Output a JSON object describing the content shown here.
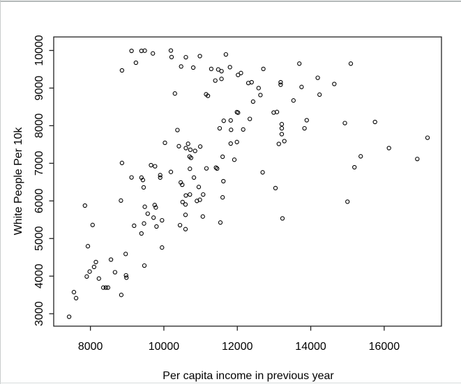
{
  "chart_data": {
    "type": "scatter",
    "title": "",
    "xlabel": "Per capita income in previous year",
    "ylabel": "White People Per 10k",
    "xlim": [
      7000,
      17560
    ],
    "ylim": [
      2670,
      10360
    ],
    "x_ticks": [
      8000,
      10000,
      12000,
      14000,
      16000
    ],
    "y_ticks": [
      3000,
      4000,
      5000,
      6000,
      7000,
      8000,
      9000,
      10000
    ],
    "grid": false,
    "legend": "none",
    "marker": "open-circle",
    "marker_color": "#000000",
    "points": [
      [
        9120,
        9990
      ],
      [
        9390,
        9990
      ],
      [
        9480,
        9995
      ],
      [
        9700,
        9920
      ],
      [
        9240,
        9675
      ],
      [
        8860,
        9470
      ],
      [
        10190,
        9999
      ],
      [
        10210,
        9825
      ],
      [
        10600,
        9820
      ],
      [
        10980,
        9850
      ],
      [
        10470,
        9575
      ],
      [
        10800,
        9545
      ],
      [
        10300,
        8855
      ],
      [
        10370,
        7885
      ],
      [
        10030,
        7545
      ],
      [
        9650,
        6950
      ],
      [
        9760,
        6920
      ],
      [
        10190,
        6770
      ],
      [
        8860,
        7010
      ],
      [
        9120,
        6625
      ],
      [
        9390,
        6620
      ],
      [
        9430,
        6555
      ],
      [
        9900,
        6685
      ],
      [
        9900,
        6620
      ],
      [
        10460,
        6490
      ],
      [
        11690,
        9895
      ],
      [
        11290,
        9510
      ],
      [
        11480,
        9495
      ],
      [
        11570,
        9450
      ],
      [
        11800,
        9555
      ],
      [
        12020,
        9350
      ],
      [
        12100,
        9400
      ],
      [
        11400,
        9200
      ],
      [
        11570,
        9245
      ],
      [
        12710,
        9510
      ],
      [
        12300,
        9135
      ],
      [
        12390,
        9155
      ],
      [
        12580,
        9000
      ],
      [
        12630,
        8815
      ],
      [
        12430,
        8640
      ],
      [
        13180,
        9155
      ],
      [
        13180,
        9090
      ],
      [
        13690,
        9650
      ],
      [
        13750,
        9030
      ],
      [
        13530,
        8670
      ],
      [
        11150,
        8835
      ],
      [
        11200,
        8795
      ],
      [
        11990,
        8360
      ],
      [
        12020,
        8345
      ],
      [
        12990,
        8350
      ],
      [
        13080,
        8365
      ],
      [
        12340,
        8180
      ],
      [
        11630,
        8130
      ],
      [
        11820,
        8140
      ],
      [
        13890,
        8145
      ],
      [
        11520,
        7930
      ],
      [
        13210,
        8040
      ],
      [
        13210,
        7930
      ],
      [
        13830,
        7930
      ],
      [
        11830,
        7890
      ],
      [
        12160,
        7900
      ],
      [
        13210,
        7775
      ],
      [
        11820,
        7525
      ],
      [
        11990,
        7565
      ],
      [
        13280,
        7590
      ],
      [
        13130,
        7515
      ],
      [
        10410,
        7455
      ],
      [
        10660,
        7520
      ],
      [
        10600,
        7405
      ],
      [
        10720,
        7360
      ],
      [
        10850,
        7330
      ],
      [
        10990,
        7445
      ],
      [
        10700,
        7180
      ],
      [
        10740,
        7145
      ],
      [
        11600,
        7175
      ],
      [
        11920,
        7095
      ],
      [
        10710,
        6855
      ],
      [
        11160,
        6865
      ],
      [
        11420,
        6885
      ],
      [
        11450,
        6860
      ],
      [
        12690,
        6760
      ],
      [
        10820,
        6620
      ],
      [
        11620,
        6525
      ],
      [
        15090,
        9650
      ],
      [
        14190,
        9275
      ],
      [
        14640,
        9110
      ],
      [
        14240,
        8825
      ],
      [
        14930,
        8070
      ],
      [
        15750,
        8100
      ],
      [
        17180,
        7680
      ],
      [
        16130,
        7405
      ],
      [
        15360,
        7185
      ],
      [
        16900,
        7115
      ],
      [
        15190,
        6895
      ],
      [
        9450,
        6360
      ],
      [
        10500,
        6430
      ],
      [
        8830,
        6010
      ],
      [
        7850,
        5875
      ],
      [
        9480,
        5845
      ],
      [
        9750,
        5890
      ],
      [
        9780,
        5825
      ],
      [
        10600,
        6145
      ],
      [
        10710,
        6170
      ],
      [
        11070,
        6170
      ],
      [
        10950,
        6370
      ],
      [
        10510,
        5970
      ],
      [
        10590,
        5905
      ],
      [
        10900,
        6000
      ],
      [
        10980,
        6030
      ],
      [
        11600,
        6095
      ],
      [
        13040,
        6340
      ],
      [
        9560,
        5660
      ],
      [
        9720,
        5555
      ],
      [
        9950,
        5485
      ],
      [
        10590,
        5630
      ],
      [
        11060,
        5585
      ],
      [
        11540,
        5425
      ],
      [
        13230,
        5535
      ],
      [
        8060,
        5360
      ],
      [
        9190,
        5340
      ],
      [
        9460,
        5400
      ],
      [
        9800,
        5320
      ],
      [
        10440,
        5355
      ],
      [
        10590,
        5250
      ],
      [
        9390,
        5135
      ],
      [
        7930,
        4795
      ],
      [
        9950,
        4760
      ],
      [
        8960,
        4590
      ],
      [
        8560,
        4440
      ],
      [
        8150,
        4375
      ],
      [
        8100,
        4245
      ],
      [
        7980,
        4120
      ],
      [
        7900,
        3990
      ],
      [
        8230,
        3935
      ],
      [
        8670,
        4105
      ],
      [
        8970,
        4020
      ],
      [
        8980,
        3960
      ],
      [
        9470,
        4280
      ],
      [
        8350,
        3695
      ],
      [
        8420,
        3695
      ],
      [
        8480,
        3695
      ],
      [
        7550,
        3575
      ],
      [
        7610,
        3415
      ],
      [
        8840,
        3500
      ],
      [
        7420,
        2920
      ],
      [
        15000,
        5980
      ]
    ]
  }
}
